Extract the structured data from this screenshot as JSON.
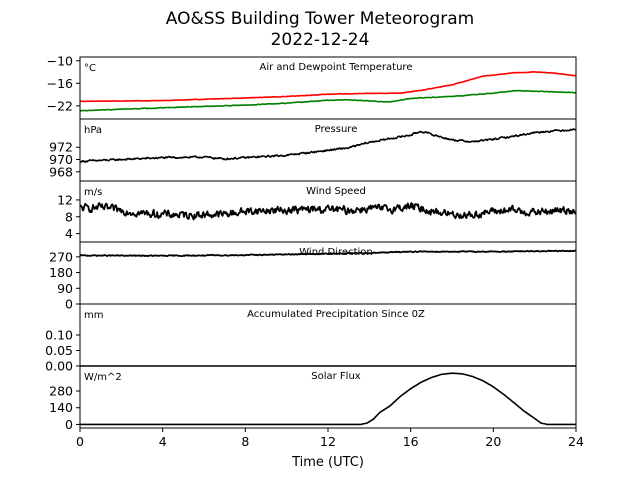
{
  "figure": {
    "title_line1": "AO&SS Building Tower Meteorogram",
    "title_line2": "2022-12-24",
    "xlabel": "Time (UTC)",
    "x_ticks": [
      "0",
      "4",
      "8",
      "12",
      "16",
      "20",
      "24"
    ]
  },
  "chart_data": [
    {
      "type": "line",
      "title": "Air and Dewpoint Temperature",
      "ylabel": "°C",
      "ylim": [
        -25.5,
        -9.0
      ],
      "yticks": [
        -10,
        -16,
        -22
      ],
      "ytick_labels": [
        "−10",
        "−16",
        "−22"
      ],
      "xlim": [
        0,
        24
      ],
      "series": [
        {
          "key": "air",
          "color": "#ff0000",
          "noise": 0.08,
          "x": [
            0,
            4,
            8,
            10,
            12,
            14,
            15.5,
            16.5,
            18,
            19.5,
            21,
            22,
            23,
            24
          ],
          "y": [
            -20.8,
            -20.6,
            -19.9,
            -19.5,
            -18.9,
            -18.7,
            -18.6,
            -17.9,
            -16.4,
            -14.1,
            -13.2,
            -13.0,
            -13.3,
            -14.0
          ]
        },
        {
          "key": "dewpoint",
          "color": "#008000",
          "noise": 0.12,
          "x": [
            0,
            4,
            8,
            10,
            12,
            13,
            15,
            16,
            18,
            20,
            21,
            22,
            24
          ],
          "y": [
            -23.3,
            -22.5,
            -21.8,
            -21.3,
            -20.5,
            -20.4,
            -21.0,
            -20.0,
            -19.5,
            -18.6,
            -18.0,
            -18.1,
            -18.5
          ]
        }
      ]
    },
    {
      "type": "line",
      "title": "Pressure",
      "ylabel": "hPa",
      "ylim": [
        966.5,
        976.6
      ],
      "yticks": [
        972,
        970,
        968
      ],
      "ytick_labels": [
        "972",
        "970",
        "968"
      ],
      "xlim": [
        0,
        24
      ],
      "series": [
        {
          "key": "pressure",
          "color": "#000000",
          "noise": 0.22,
          "x": [
            0,
            2,
            4,
            6,
            7,
            8,
            10,
            12,
            13,
            14,
            15,
            16,
            16.5,
            17,
            18,
            19,
            20,
            21,
            22,
            23,
            24
          ],
          "y": [
            969.7,
            970.0,
            970.3,
            970.4,
            970.1,
            970.3,
            970.7,
            971.5,
            971.9,
            972.8,
            973.4,
            974.0,
            974.6,
            974.1,
            973.2,
            972.9,
            973.3,
            973.8,
            974.4,
            974.7,
            974.9
          ]
        }
      ]
    },
    {
      "type": "line",
      "title": "Wind Speed",
      "ylabel": "m/s",
      "ylim": [
        2.0,
        16.5
      ],
      "yticks": [
        12,
        8,
        4
      ],
      "ytick_labels": [
        "12",
        "8",
        "4"
      ],
      "xlim": [
        0,
        24
      ],
      "series": [
        {
          "key": "wind_speed",
          "color": "#000000",
          "noise": 1.4,
          "x": [
            0,
            1,
            3,
            5,
            7,
            8,
            10,
            12,
            13,
            14,
            15,
            16,
            17,
            18,
            19,
            20,
            21,
            22,
            23,
            24
          ],
          "y": [
            10.0,
            10.2,
            8.8,
            8.4,
            8.6,
            9.3,
            9.6,
            9.8,
            9.5,
            10.0,
            9.8,
            10.5,
            9.4,
            8.6,
            8.4,
            9.3,
            9.5,
            9.0,
            9.4,
            9.6
          ]
        }
      ]
    },
    {
      "type": "line",
      "title": "Wind Direction",
      "ylabel": "",
      "ylim": [
        0,
        355
      ],
      "yticks": [
        270,
        180,
        90,
        0
      ],
      "ytick_labels": [
        "270",
        "180",
        "90",
        "0"
      ],
      "xlim": [
        0,
        24
      ],
      "series": [
        {
          "key": "wind_direction",
          "color": "#000000",
          "noise": 4,
          "x": [
            0,
            4,
            8,
            12,
            14,
            16,
            18,
            20,
            22,
            24
          ],
          "y": [
            278,
            276,
            280,
            288,
            292,
            300,
            300,
            300,
            302,
            304
          ]
        }
      ]
    },
    {
      "type": "line",
      "title": "Accumulated Precipitation Since 0Z",
      "ylabel": "mm",
      "ylim": [
        0,
        0.2
      ],
      "yticks": [
        0.1,
        0.05,
        0.0
      ],
      "ytick_labels": [
        "0.10",
        "0.05",
        "0.00"
      ],
      "xlim": [
        0,
        24
      ],
      "series": [
        {
          "key": "precipitation",
          "color": "#000000",
          "noise": 0,
          "x": [
            0,
            24
          ],
          "y": [
            0,
            0
          ]
        }
      ]
    },
    {
      "type": "line",
      "title": "Solar Flux",
      "ylabel": "W/m^2",
      "ylim": [
        -30,
        490
      ],
      "yticks": [
        280,
        140,
        0
      ],
      "ytick_labels": [
        "280",
        "140",
        "0"
      ],
      "xlim": [
        0,
        24
      ],
      "series": [
        {
          "key": "solar_flux",
          "color": "#000000",
          "noise": 0,
          "x": [
            0,
            13.6,
            13.9,
            14.2,
            14.5,
            15.0,
            15.5,
            16.0,
            16.5,
            17.0,
            17.5,
            18.0,
            18.5,
            19.0,
            19.5,
            20.0,
            20.5,
            21.0,
            21.5,
            22.0,
            22.3,
            22.6,
            24
          ],
          "y": [
            0,
            0,
            12,
            45,
            100,
            155,
            235,
            300,
            353,
            393,
            420,
            430,
            424,
            402,
            366,
            315,
            252,
            182,
            110,
            50,
            12,
            0,
            0
          ]
        }
      ]
    }
  ]
}
